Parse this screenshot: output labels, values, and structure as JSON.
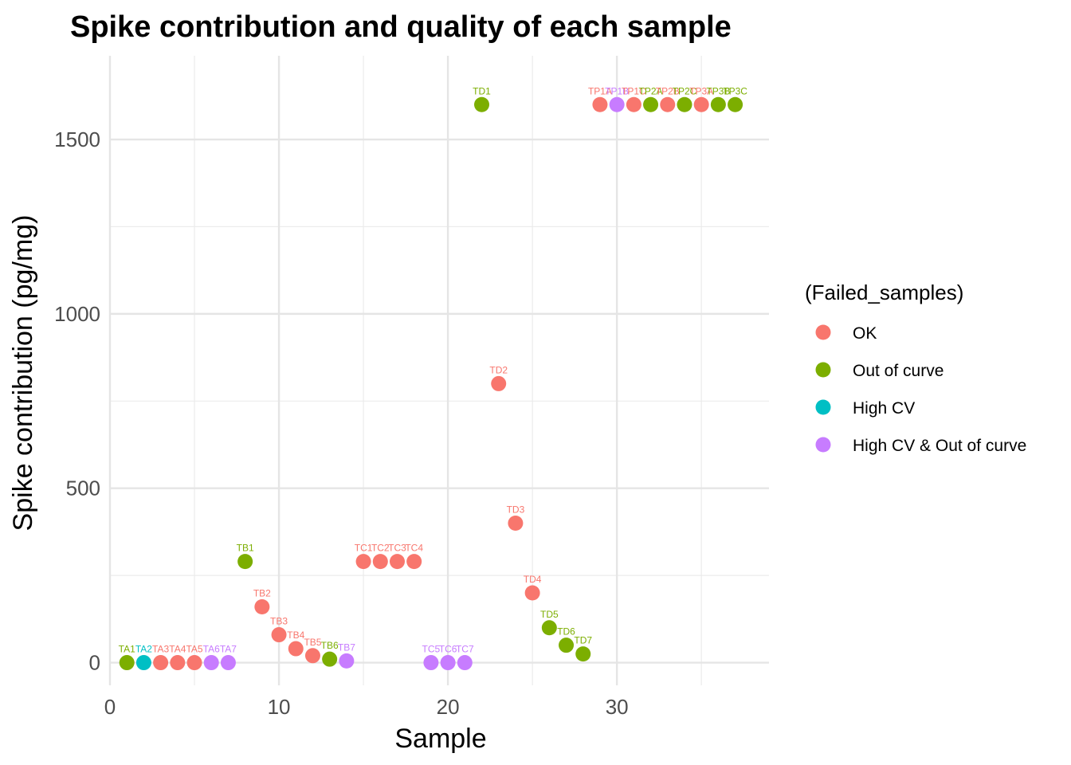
{
  "chart_data": {
    "type": "scatter",
    "title": "Spike contribution and quality of each sample",
    "xlabel": "Sample",
    "ylabel": "Spike contribution (pg/mg)",
    "xlim": [
      0,
      39
    ],
    "ylim": [
      -65,
      1740
    ],
    "x_ticks": [
      0,
      10,
      20,
      30
    ],
    "y_ticks": [
      0,
      500,
      1000,
      1500
    ],
    "x_minor_ticks": [
      5,
      15,
      25,
      35
    ],
    "y_minor_ticks": [
      250,
      750,
      1250
    ],
    "grid": true,
    "legend": {
      "title": "(Failed_samples)",
      "position": "right",
      "entries": [
        {
          "key": "ok",
          "label": "OK",
          "color": "#F8766D"
        },
        {
          "key": "out",
          "label": "Out of curve",
          "color": "#7CAE00"
        },
        {
          "key": "cv",
          "label": "High CV",
          "color": "#00BFC4"
        },
        {
          "key": "both",
          "label": "High CV & Out of curve",
          "color": "#C77CFF"
        }
      ]
    },
    "label_colors": {
      "ok": "#F8766D",
      "out": "#7CAE00",
      "cv": "#00BFC4",
      "both": "#C77CFF"
    },
    "points": [
      {
        "x": 1,
        "y": 0,
        "label": "TA1",
        "group": "out"
      },
      {
        "x": 2,
        "y": 0,
        "label": "TA2",
        "group": "cv"
      },
      {
        "x": 3,
        "y": 0,
        "label": "TA3",
        "group": "ok"
      },
      {
        "x": 4,
        "y": 0,
        "label": "TA4",
        "group": "ok"
      },
      {
        "x": 5,
        "y": 0,
        "label": "TA5",
        "group": "ok"
      },
      {
        "x": 6,
        "y": 0,
        "label": "TA6",
        "group": "both"
      },
      {
        "x": 7,
        "y": 0,
        "label": "TA7",
        "group": "both"
      },
      {
        "x": 8,
        "y": 290,
        "label": "TB1",
        "group": "out"
      },
      {
        "x": 9,
        "y": 160,
        "label": "TB2",
        "group": "ok"
      },
      {
        "x": 10,
        "y": 80,
        "label": "TB3",
        "group": "ok"
      },
      {
        "x": 11,
        "y": 40,
        "label": "TB4",
        "group": "ok"
      },
      {
        "x": 12,
        "y": 20,
        "label": "TB5",
        "group": "ok"
      },
      {
        "x": 13,
        "y": 10,
        "label": "TB6",
        "group": "out"
      },
      {
        "x": 14,
        "y": 5,
        "label": "TB7",
        "group": "both"
      },
      {
        "x": 15,
        "y": 290,
        "label": "TC1",
        "group": "ok"
      },
      {
        "x": 16,
        "y": 290,
        "label": "TC2",
        "group": "ok"
      },
      {
        "x": 17,
        "y": 290,
        "label": "TC3",
        "group": "ok"
      },
      {
        "x": 18,
        "y": 290,
        "label": "TC4",
        "group": "ok"
      },
      {
        "x": 19,
        "y": 0,
        "label": "TC5",
        "group": "both"
      },
      {
        "x": 20,
        "y": 0,
        "label": "TC6",
        "group": "both"
      },
      {
        "x": 21,
        "y": 0,
        "label": "TC7",
        "group": "both"
      },
      {
        "x": 22,
        "y": 1600,
        "label": "TD1",
        "group": "out"
      },
      {
        "x": 23,
        "y": 800,
        "label": "TD2",
        "group": "ok"
      },
      {
        "x": 24,
        "y": 400,
        "label": "TD3",
        "group": "ok"
      },
      {
        "x": 25,
        "y": 200,
        "label": "TD4",
        "group": "ok"
      },
      {
        "x": 26,
        "y": 100,
        "label": "TD5",
        "group": "out"
      },
      {
        "x": 27,
        "y": 50,
        "label": "TD6",
        "group": "out"
      },
      {
        "x": 28,
        "y": 25,
        "label": "TD7",
        "group": "out"
      },
      {
        "x": 29,
        "y": 1600,
        "label": "TP1A",
        "group": "ok"
      },
      {
        "x": 30,
        "y": 1600,
        "label": "TP1B",
        "group": "both"
      },
      {
        "x": 31,
        "y": 1600,
        "label": "TP1C",
        "group": "ok"
      },
      {
        "x": 32,
        "y": 1600,
        "label": "TP2A",
        "group": "out"
      },
      {
        "x": 33,
        "y": 1600,
        "label": "TP2B",
        "group": "ok"
      },
      {
        "x": 34,
        "y": 1600,
        "label": "TP2C",
        "group": "out"
      },
      {
        "x": 35,
        "y": 1600,
        "label": "TP3A",
        "group": "ok"
      },
      {
        "x": 36,
        "y": 1600,
        "label": "TP3B",
        "group": "out"
      },
      {
        "x": 37,
        "y": 1600,
        "label": "TP3C",
        "group": "out"
      }
    ]
  }
}
